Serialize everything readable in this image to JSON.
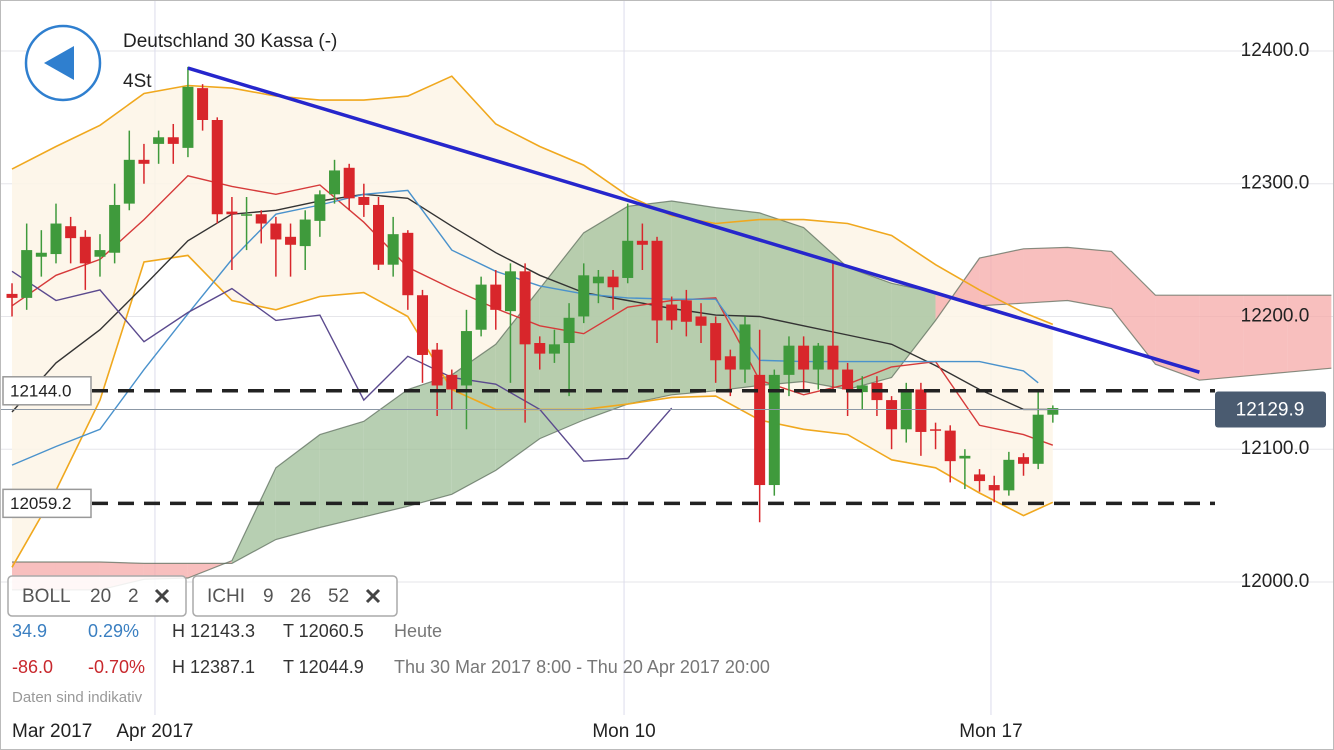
{
  "header": {
    "title": "Deutschland 30 Kassa (-)",
    "timeframe": "4St"
  },
  "chart_data": {
    "type": "candlestick",
    "xlim": [
      -0.82,
      90.18
    ],
    "ylim": [
      11873.4,
      12438.4
    ],
    "x_label_start": "Mar 2017",
    "xticks": [
      {
        "value": 9.75,
        "label": "Apr 2017"
      },
      {
        "value": 41.75,
        "label": "Mon 10"
      },
      {
        "value": 66.78,
        "label": "Mon 17"
      }
    ],
    "yticks": [
      {
        "value": 12400,
        "label": "12400.0"
      },
      {
        "value": 12300,
        "label": "12300.0"
      },
      {
        "value": 12200,
        "label": "12200.0"
      },
      {
        "value": 12100,
        "label": "12100.0"
      },
      {
        "value": 12000,
        "label": "12000.0"
      }
    ],
    "grid": true,
    "up_color": "#3f9a3c",
    "down_color": "#d8262b",
    "x": [
      0,
      1,
      2,
      3,
      4,
      5,
      6,
      7,
      8,
      9,
      10,
      11,
      12,
      13,
      14,
      15,
      16,
      17,
      18,
      19,
      20,
      21,
      22,
      23,
      24,
      25,
      26,
      27,
      28,
      29,
      30,
      31,
      32,
      33,
      34,
      35,
      36,
      37,
      38,
      39,
      40,
      41,
      42,
      43,
      44,
      45,
      46,
      47,
      48,
      49,
      50,
      51,
      52,
      53,
      54,
      55,
      56,
      57,
      58,
      59,
      60,
      61,
      62,
      63,
      64,
      65,
      66,
      67,
      68,
      69,
      70,
      71
    ],
    "open": [
      12217,
      12214,
      12245,
      12247,
      12268,
      12260,
      12245,
      12248,
      12285,
      12318,
      12330,
      12335,
      12327,
      12372,
      12348,
      12279,
      12276,
      12277,
      12270,
      12260,
      12253,
      12272,
      12292,
      12312,
      12290,
      12284,
      12239,
      12263,
      12216,
      12175,
      12156,
      12148,
      12190,
      12224,
      12204,
      12234,
      12180,
      12172,
      12180,
      12200,
      12225,
      12230,
      12229,
      12257,
      12257,
      12209,
      12212,
      12200,
      12195,
      12170,
      12160,
      12156,
      12073,
      12156,
      12178,
      12160,
      12178,
      12160,
      12143,
      12150,
      12137,
      12115,
      12145,
      12115,
      12114,
      12093,
      12081,
      12073,
      12069,
      12094,
      12089,
      12126
    ],
    "high": [
      12225,
      12270,
      12265,
      12285,
      12275,
      12265,
      12262,
      12300,
      12340,
      12330,
      12340,
      12345,
      12388,
      12375,
      12350,
      12290,
      12290,
      12280,
      12275,
      12270,
      12280,
      12295,
      12318,
      12315,
      12300,
      12290,
      12275,
      12265,
      12220,
      12180,
      12160,
      12205,
      12230,
      12235,
      12240,
      12240,
      12185,
      12190,
      12210,
      12240,
      12235,
      12235,
      12285,
      12270,
      12260,
      12215,
      12220,
      12210,
      12200,
      12175,
      12200,
      12190,
      12160,
      12185,
      12185,
      12180,
      12240,
      12165,
      12155,
      12155,
      12140,
      12150,
      12150,
      12120,
      12118,
      12100,
      12085,
      12080,
      12098,
      12097,
      12145,
      12133
    ],
    "low": [
      12200,
      12205,
      12230,
      12240,
      12240,
      12220,
      12230,
      12240,
      12280,
      12300,
      12315,
      12315,
      12320,
      12340,
      12270,
      12235,
      12250,
      12255,
      12230,
      12230,
      12235,
      12260,
      12285,
      12280,
      12275,
      12235,
      12230,
      12205,
      12150,
      12125,
      12130,
      12115,
      12185,
      12190,
      12150,
      12120,
      12160,
      12165,
      12140,
      12195,
      12210,
      12205,
      12225,
      12235,
      12180,
      12190,
      12185,
      12180,
      12150,
      12140,
      12150,
      12045,
      12065,
      12140,
      12145,
      12145,
      12145,
      12125,
      12130,
      12125,
      12100,
      12105,
      12095,
      12100,
      12075,
      12070,
      12068,
      12060,
      12065,
      12080,
      12085,
      12120
    ],
    "close": [
      12214,
      12250,
      12248,
      12270,
      12259,
      12240,
      12250,
      12284,
      12318,
      12315,
      12335,
      12330,
      12373,
      12348,
      12277,
      12277,
      12277,
      12270,
      12258,
      12254,
      12273,
      12292,
      12310,
      12289,
      12284,
      12239,
      12262,
      12216,
      12171,
      12148,
      12145,
      12189,
      12224,
      12205,
      12234,
      12179,
      12172,
      12179,
      12199,
      12231,
      12230,
      12222,
      12257,
      12254,
      12197,
      12197,
      12196,
      12193,
      12167,
      12160,
      12194,
      12073,
      12156,
      12178,
      12160,
      12178,
      12160,
      12145,
      12148,
      12137,
      12115,
      12145,
      12113,
      12114,
      12091,
      12095,
      12076,
      12069,
      12092,
      12089,
      12126,
      12131
    ],
    "band": {
      "color": "#f0a81e",
      "fill": "#fdf4e6",
      "x": [
        0,
        3,
        6,
        9,
        12,
        15,
        18,
        21,
        24,
        27,
        30,
        33,
        36,
        39,
        42,
        45,
        48,
        51,
        54,
        57,
        60,
        63,
        66,
        69,
        71
      ],
      "upper": [
        12311,
        12328,
        12344,
        12368,
        12374,
        12372,
        12366,
        12363,
        12363,
        12366,
        12381,
        12345,
        12328,
        12314,
        12291,
        12276,
        12270,
        12273,
        12273,
        12270,
        12261,
        12239,
        12220,
        12203,
        12194
      ],
      "lower": [
        12011,
        12069,
        12137,
        12241,
        12246,
        12212,
        12205,
        12215,
        12218,
        12200,
        12145,
        12130,
        12130,
        12130,
        12134,
        12139,
        12140,
        12122,
        12115,
        12111,
        12092,
        12086,
        12067,
        12050,
        12060
      ]
    },
    "lines": [
      {
        "color": "#333333",
        "x": [
          0,
          3,
          6,
          9,
          12,
          15,
          18,
          21,
          24,
          27,
          30,
          33,
          36,
          39,
          42,
          45,
          48,
          51,
          54,
          57,
          60,
          63,
          66,
          69,
          71
        ],
        "values": [
          12128,
          12165,
          12190,
          12223,
          12257,
          12277,
          12280,
          12287,
          12292,
          12289,
          12268,
          12248,
          12231,
          12218,
          12212,
          12206,
          12201,
          12200,
          12193,
          12186,
          12179,
          12163,
          12145,
          12130,
          12130
        ]
      },
      {
        "color": "#d63a3a",
        "x": [
          0,
          3,
          6,
          9,
          12,
          15,
          18,
          21,
          24,
          27,
          30,
          33,
          36,
          39,
          42,
          45,
          48,
          51,
          54,
          57,
          60,
          63,
          66,
          69,
          71
        ],
        "values": [
          12208,
          12231,
          12243,
          12273,
          12306,
          12298,
          12292,
          12299,
          12271,
          12237,
          12221,
          12206,
          12193,
          12187,
          12207,
          12212,
          12214,
          12152,
          12141,
          12149,
          12162,
          12166,
          12118,
          12111,
          12103
        ]
      },
      {
        "color": "#4a92cc",
        "x": [
          0,
          3,
          6,
          9,
          12,
          15,
          18,
          21,
          24,
          27,
          30,
          33,
          36,
          39,
          42,
          45,
          48,
          51,
          54,
          57,
          60,
          63,
          66,
          69,
          70
        ],
        "values": [
          12088,
          12102,
          12115,
          12160,
          12202,
          12243,
          12277,
          12284,
          12292,
          12295,
          12250,
          12234,
          12223,
          12217,
          12214,
          12213,
          12213,
          12167,
          12166,
          12166,
          12166,
          12166,
          12166,
          12159,
          12150
        ]
      },
      {
        "color": "#5b4a8e",
        "x": [
          0,
          3,
          6,
          9,
          12,
          15,
          18,
          21,
          24,
          27,
          30,
          33,
          36,
          39,
          42,
          45
        ],
        "values": [
          12234,
          12212,
          12220,
          12181,
          12203,
          12221,
          12197,
          12201,
          12137,
          12170,
          12154,
          12149,
          12130,
          12091,
          12093,
          12131
        ]
      }
    ],
    "cloud": {
      "up_color": "#9fbf98",
      "down_color": "#f5a9a8",
      "edge_color": "#556655",
      "x": [
        0,
        3,
        6,
        9,
        12,
        15,
        18,
        21,
        24,
        27,
        30,
        33,
        36,
        39,
        42,
        45,
        48,
        51,
        54,
        57,
        60,
        63,
        66,
        69,
        72,
        75,
        78,
        81,
        84,
        87,
        90
      ],
      "span_a": [
        11994,
        11994,
        11994,
        12002,
        12003,
        12016,
        12086,
        12111,
        12121,
        12145,
        12156,
        12179,
        12221,
        12263,
        12283,
        12287,
        12282,
        12278,
        12267,
        12237,
        12225,
        12218,
        12208,
        12210,
        12212,
        12206,
        12164,
        12152,
        12155,
        12158,
        12161
      ],
      "span_b": [
        12015,
        12015,
        12015,
        12014,
        12014,
        12014,
        12032,
        12041,
        12049,
        12057,
        12066,
        12084,
        12108,
        12122,
        12134,
        12141,
        12144,
        12148,
        12151,
        12145,
        12154,
        12197,
        12244,
        12251,
        12252,
        12249,
        12216,
        12216,
        12216,
        12216,
        12216
      ]
    },
    "trendline": {
      "color": "#2626cc",
      "x": [
        12,
        81
      ],
      "values": [
        12387.1,
        12158
      ]
    },
    "levels": [
      {
        "value": 12144.0,
        "label": "12144.0"
      },
      {
        "value": 12059.2,
        "label": "12059.2"
      }
    ],
    "last_price": 12129.9
  },
  "panel": {
    "indicators": [
      {
        "name": "BOLL",
        "params": [
          "20",
          "2"
        ]
      },
      {
        "name": "ICHI",
        "params": [
          "9",
          "26",
          "52"
        ]
      }
    ],
    "rows": [
      {
        "color": "#3a7fc1",
        "change": "34.9",
        "change_pct": "0.29%",
        "high": "H 12143.3",
        "low": "T 12060.5",
        "period": "Heute"
      },
      {
        "color": "#c8282d",
        "change": "-86.0",
        "change_pct": "-0.70%",
        "high": "H 12387.1",
        "low": "T 12044.9",
        "period": "Thu 30 Mar 2017 8:00 - Thu 20 Apr 2017 20:00"
      }
    ],
    "note": "Daten sind indikativ"
  }
}
